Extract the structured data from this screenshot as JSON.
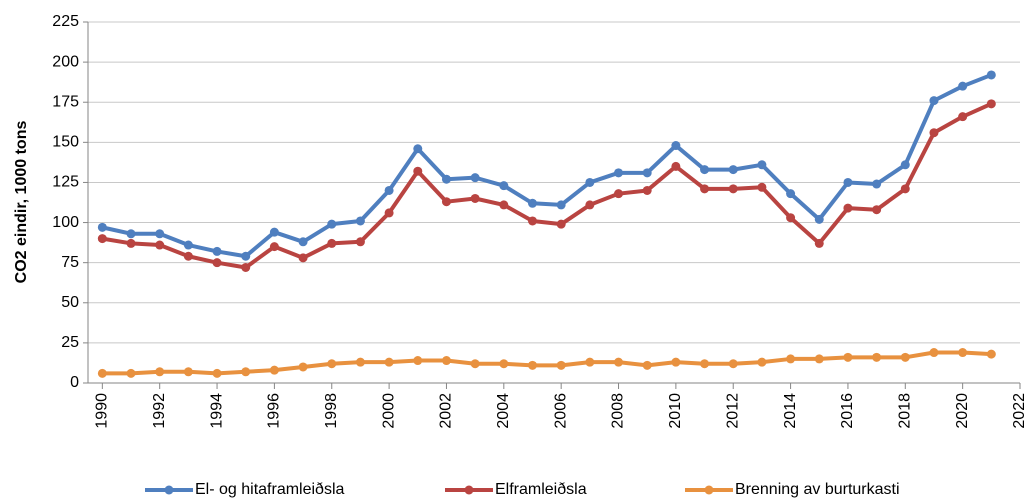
{
  "chart_data": {
    "type": "line",
    "y_label": "CO2  eindir, 1000 tons",
    "x": [
      1990,
      1991,
      1992,
      1993,
      1994,
      1995,
      1996,
      1997,
      1998,
      1999,
      2000,
      2001,
      2002,
      2003,
      2004,
      2005,
      2006,
      2007,
      2008,
      2009,
      2010,
      2011,
      2012,
      2013,
      2014,
      2015,
      2016,
      2017,
      2018,
      2019,
      2020,
      2021
    ],
    "series": [
      {
        "name": "El- og hitaframleiðsla",
        "color": "#4f7fbf",
        "values": [
          97,
          93,
          93,
          86,
          82,
          79,
          94,
          88,
          99,
          101,
          120,
          146,
          127,
          128,
          123,
          112,
          111,
          125,
          131,
          131,
          148,
          133,
          133,
          136,
          118,
          102,
          125,
          124,
          136,
          176,
          185,
          192
        ]
      },
      {
        "name": "Elframleiðsla",
        "color": "#b94441",
        "values": [
          90,
          87,
          86,
          79,
          75,
          72,
          85,
          78,
          87,
          88,
          106,
          132,
          113,
          115,
          111,
          101,
          99,
          111,
          118,
          120,
          135,
          121,
          121,
          122,
          103,
          87,
          109,
          108,
          121,
          156,
          166,
          174
        ]
      },
      {
        "name": "Brenning av burturkasti",
        "color": "#e8913f",
        "values": [
          6,
          6,
          7,
          7,
          6,
          7,
          8,
          10,
          12,
          13,
          13,
          14,
          14,
          12,
          12,
          11,
          11,
          13,
          13,
          11,
          13,
          12,
          12,
          13,
          15,
          15,
          16,
          16,
          16,
          19,
          19,
          18
        ]
      }
    ],
    "xlim": [
      1989.5,
      2022
    ],
    "xticks": [
      1990,
      1992,
      1994,
      1996,
      1998,
      2000,
      2002,
      2004,
      2006,
      2008,
      2010,
      2012,
      2014,
      2016,
      2018,
      2020,
      2022
    ],
    "ylim": [
      0,
      225
    ],
    "yticks": [
      0,
      25,
      50,
      75,
      100,
      125,
      150,
      175,
      200,
      225
    ],
    "grid": true,
    "legend": "bottom"
  }
}
